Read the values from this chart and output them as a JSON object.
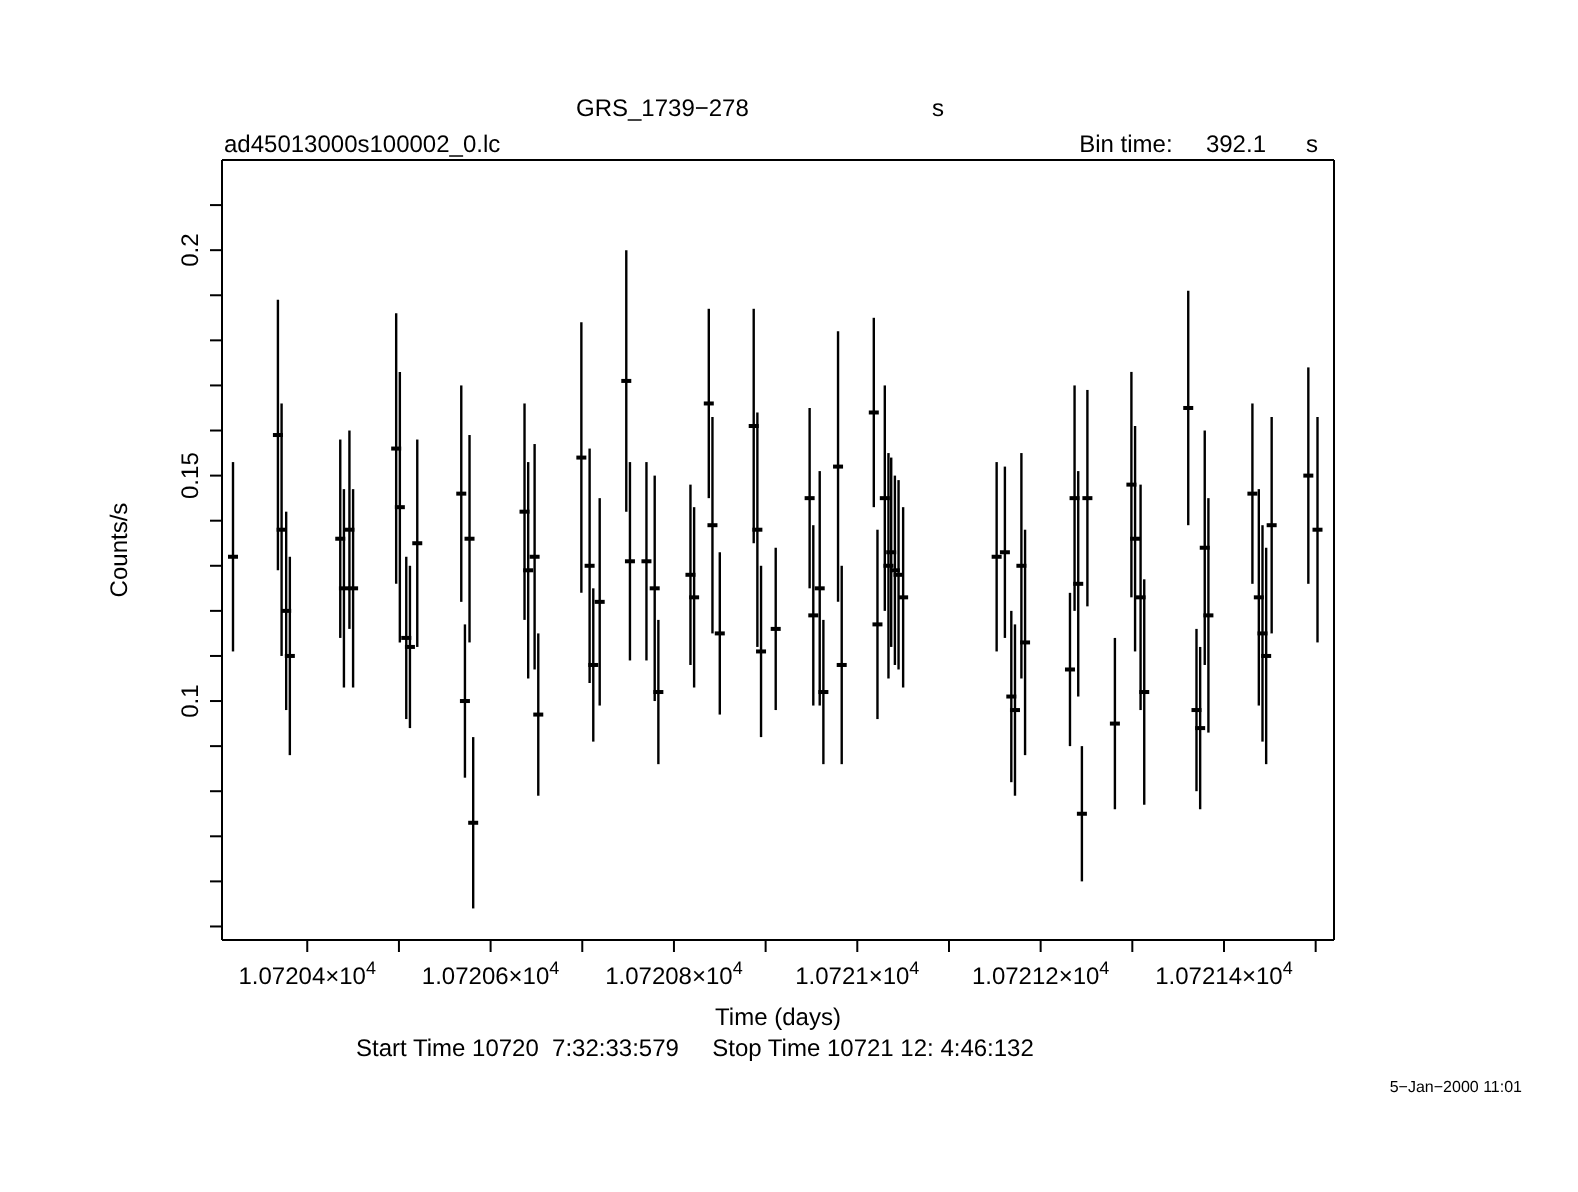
{
  "chart_data": {
    "type": "scatter",
    "title": "GRS_1739−278",
    "subtitle": "ad45013000s100002_0.lc",
    "xlabel": "Time (days)",
    "ylabel": "Counts/s",
    "annotations": [
      "s",
      "Bin time:     392.1      s",
      "Start Time 10720  7:32:33:579     Stop Time 10721 12: 4:46:132",
      "5−Jan−2000 11:01"
    ],
    "legend": false,
    "xlim": [
      10720.307,
      10721.52
    ],
    "ylim": [
      0.047,
      0.22
    ],
    "xticks": [
      {
        "value": 10720.4,
        "label": "1.07204×10$^{4}$"
      },
      {
        "value": 10720.5,
        "label": null
      },
      {
        "value": 10720.6,
        "label": "1.07206×10$^{4}$"
      },
      {
        "value": 10720.7,
        "label": null
      },
      {
        "value": 10720.8,
        "label": "1.07208×10$^{4}$"
      },
      {
        "value": 10720.9,
        "label": null
      },
      {
        "value": 10721.0,
        "label": "1.0721×10$^{4}$"
      },
      {
        "value": 10721.1,
        "label": null
      },
      {
        "value": 10721.2,
        "label": "1.07212×10$^{4}$"
      },
      {
        "value": 10721.3,
        "label": null
      },
      {
        "value": 10721.4,
        "label": "1.07214×10$^{4}$"
      },
      {
        "value": 10721.5,
        "label": null
      }
    ],
    "yticks": [
      {
        "value": 0.05,
        "label": null
      },
      {
        "value": 0.06,
        "label": null
      },
      {
        "value": 0.07,
        "label": null
      },
      {
        "value": 0.08,
        "label": null
      },
      {
        "value": 0.09,
        "label": null
      },
      {
        "value": 0.1,
        "label": "0.1"
      },
      {
        "value": 0.11,
        "label": null
      },
      {
        "value": 0.12,
        "label": null
      },
      {
        "value": 0.13,
        "label": null
      },
      {
        "value": 0.14,
        "label": null
      },
      0.15,
      {
        "value": 0.16,
        "label": null
      },
      {
        "value": 0.17,
        "label": null
      },
      {
        "value": 0.18,
        "label": null
      },
      {
        "value": 0.19,
        "label": null
      },
      0.2,
      {
        "value": 0.21,
        "label": null
      }
    ],
    "x": [
      10720.319,
      10720.368,
      10720.372,
      10720.377,
      10720.381,
      10720.436,
      10720.44,
      10720.446,
      10720.45,
      10720.497,
      10720.501,
      10720.508,
      10720.512,
      10720.52,
      10720.568,
      10720.572,
      10720.577,
      10720.581,
      10720.637,
      10720.641,
      10720.648,
      10720.652,
      10720.699,
      10720.708,
      10720.712,
      10720.719,
      10720.748,
      10720.752,
      10720.77,
      10720.779,
      10720.783,
      10720.818,
      10720.822,
      10720.838,
      10720.842,
      10720.85,
      10720.887,
      10720.891,
      10720.895,
      10720.911,
      10720.948,
      10720.952,
      10720.959,
      10720.963,
      10720.979,
      10720.983,
      10721.018,
      10721.022,
      10721.03,
      10721.034,
      10721.037,
      10721.041,
      10721.045,
      10721.05,
      10721.152,
      10721.161,
      10721.168,
      10721.172,
      10721.179,
      10721.183,
      10721.232,
      10721.237,
      10721.241,
      10721.245,
      10721.251,
      10721.281,
      10721.299,
      10721.303,
      10721.309,
      10721.313,
      10721.361,
      10721.37,
      10721.374,
      10721.379,
      10721.383,
      10721.431,
      10721.438,
      10721.442,
      10721.446,
      10721.452,
      10721.492,
      10721.502
    ],
    "series": [
      {
        "color": "#000000",
        "values": [
          0.132,
          0.159,
          0.138,
          0.12,
          0.11,
          0.136,
          0.125,
          0.138,
          0.125,
          0.156,
          0.143,
          0.114,
          0.112,
          0.135,
          0.146,
          0.1,
          0.136,
          0.073,
          0.142,
          0.129,
          0.132,
          0.097,
          0.154,
          0.13,
          0.108,
          0.122,
          0.171,
          0.131,
          0.131,
          0.125,
          0.102,
          0.128,
          0.123,
          0.166,
          0.139,
          0.115,
          0.161,
          0.138,
          0.111,
          0.116,
          0.145,
          0.119,
          0.125,
          0.102,
          0.152,
          0.108,
          0.164,
          0.117,
          0.145,
          0.13,
          0.133,
          0.129,
          0.128,
          0.123,
          0.132,
          0.133,
          0.101,
          0.098,
          0.13,
          0.113,
          0.107,
          0.145,
          0.126,
          0.075,
          0.145,
          0.095,
          0.148,
          0.136,
          0.123,
          0.102,
          0.165,
          0.098,
          0.094,
          0.134,
          0.119,
          0.146,
          0.123,
          0.115,
          0.11,
          0.139,
          0.15,
          0.138
        ],
        "errors": [
          0.021,
          0.03,
          0.028,
          0.022,
          0.022,
          0.022,
          0.022,
          0.022,
          0.022,
          0.03,
          0.03,
          0.018,
          0.018,
          0.023,
          0.024,
          0.017,
          0.023,
          0.019,
          0.024,
          0.024,
          0.025,
          0.018,
          0.03,
          0.026,
          0.017,
          0.023,
          0.029,
          0.022,
          0.022,
          0.025,
          0.016,
          0.02,
          0.02,
          0.021,
          0.024,
          0.018,
          0.026,
          0.026,
          0.019,
          0.018,
          0.02,
          0.02,
          0.026,
          0.016,
          0.03,
          0.022,
          0.021,
          0.021,
          0.025,
          0.025,
          0.021,
          0.021,
          0.021,
          0.02,
          0.021,
          0.019,
          0.019,
          0.019,
          0.025,
          0.025,
          0.017,
          0.025,
          0.025,
          0.015,
          0.024,
          0.019,
          0.025,
          0.025,
          0.025,
          0.025,
          0.026,
          0.018,
          0.018,
          0.026,
          0.026,
          0.02,
          0.024,
          0.024,
          0.024,
          0.024,
          0.024,
          0.025
        ],
        "xerrors": [
          0.0023,
          0.0023,
          0.0023,
          0.0023,
          0.0023,
          0.0023,
          0.0023,
          0.0023,
          0.0023,
          0.0023,
          0.0023,
          0.0023,
          0.0023,
          0.0023,
          0.0023,
          0.0023,
          0.0023,
          0.0023,
          0.0023,
          0.0023,
          0.0023,
          0.0023,
          0.0023,
          0.0023,
          0.0023,
          0.0023,
          0.0023,
          0.0023,
          0.0023,
          0.0023,
          0.0023,
          0.0023,
          0.0023,
          0.0023,
          0.0023,
          0.0023,
          0.0023,
          0.0023,
          0.0023,
          0.0023,
          0.0023,
          0.0023,
          0.0023,
          0.0023,
          0.0023,
          0.0023,
          0.0023,
          0.0023,
          0.0023,
          0.0023,
          0.0023,
          0.0023,
          0.0023,
          0.0023,
          0.0023,
          0.0023,
          0.0023,
          0.0023,
          0.0023,
          0.0023,
          0.0023,
          0.0023,
          0.0023,
          0.0023,
          0.0023,
          0.0023,
          0.0023,
          0.0023,
          0.0023,
          0.0023,
          0.0023,
          0.0023,
          0.0023,
          0.0023,
          0.0023,
          0.0023,
          0.0023,
          0.0023,
          0.0023,
          0.0023,
          0.0023,
          0.0023
        ]
      }
    ]
  }
}
